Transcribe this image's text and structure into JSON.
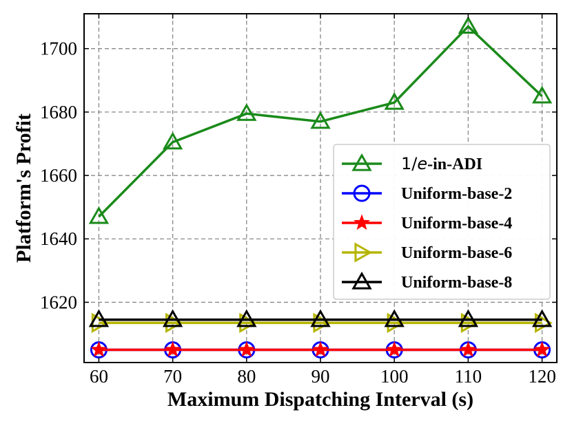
{
  "chart_data": {
    "type": "line",
    "xlabel": "Maximum Dispatching Interval (s)",
    "ylabel": "Platform's Profit",
    "x": [
      60,
      70,
      80,
      90,
      100,
      110,
      120
    ],
    "xlim": [
      58,
      122
    ],
    "ylim": [
      1601,
      1711
    ],
    "yticks": [
      1620,
      1640,
      1660,
      1680,
      1700
    ],
    "grid": true,
    "legend_position": "center-right",
    "series": [
      {
        "name": "1/e-in-ADI",
        "name_prefix": "1/",
        "name_italic": "e",
        "name_suffix": "-in-ADI",
        "color": "#1a8a1a",
        "marker": "triangle-up",
        "values": [
          1647,
          1670.5,
          1679.5,
          1677,
          1683,
          1707,
          1685
        ]
      },
      {
        "name": "Uniform-base-2",
        "color": "#0000ff",
        "marker": "circle",
        "values": [
          1605,
          1605,
          1605,
          1605,
          1605,
          1605,
          1605
        ]
      },
      {
        "name": "Uniform-base-4",
        "color": "#ff0000",
        "marker": "star",
        "values": [
          1605,
          1605,
          1605,
          1605,
          1605,
          1605,
          1605
        ]
      },
      {
        "name": "Uniform-base-6",
        "color": "#b5b500",
        "marker": "triangle-right",
        "values": [
          1613.5,
          1613.5,
          1613.5,
          1613.5,
          1613.5,
          1613.5,
          1613.5
        ]
      },
      {
        "name": "Uniform-base-8",
        "color": "#000000",
        "marker": "triangle-up",
        "values": [
          1614.5,
          1614.5,
          1614.5,
          1614.5,
          1614.5,
          1614.5,
          1614.5
        ]
      }
    ]
  }
}
